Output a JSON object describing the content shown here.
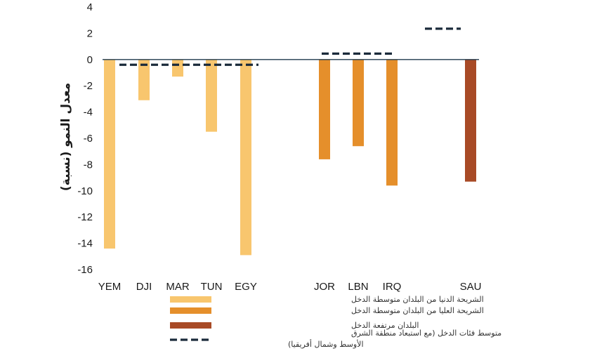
{
  "chart_data": {
    "type": "bar",
    "ylabel": "معدل النمو (نسبة)",
    "ylim": [
      -16,
      4
    ],
    "yticks": [
      4,
      2,
      0,
      -2,
      -4,
      -6,
      -8,
      -10,
      -12,
      -14,
      -16
    ],
    "categories": [
      "YEM",
      "DJI",
      "MAR",
      "TUN",
      "EGY",
      "JOR",
      "LBN",
      "IRQ",
      "SAU"
    ],
    "bars": [
      {
        "category": "YEM",
        "value": -14.4,
        "group": "lower_middle"
      },
      {
        "category": "DJI",
        "value": -3.1,
        "group": "lower_middle"
      },
      {
        "category": "MAR",
        "value": -1.3,
        "group": "lower_middle"
      },
      {
        "category": "TUN",
        "value": -5.5,
        "group": "lower_middle"
      },
      {
        "category": "EGY",
        "value": -14.9,
        "group": "lower_middle"
      },
      {
        "category": "JOR",
        "value": -7.6,
        "group": "upper_middle"
      },
      {
        "category": "LBN",
        "value": -6.6,
        "group": "upper_middle"
      },
      {
        "category": "IRQ",
        "value": -9.6,
        "group": "upper_middle"
      },
      {
        "category": "SAU",
        "value": -9.3,
        "group": "high"
      }
    ],
    "group_averages": [
      {
        "group": "lower_middle",
        "categories": [
          "YEM",
          "DJI",
          "MAR",
          "TUN",
          "EGY"
        ],
        "value": -0.4
      },
      {
        "group": "upper_middle",
        "categories": [
          "JOR",
          "LBN",
          "IRQ"
        ],
        "value": 0.45
      },
      {
        "group": "high",
        "categories": [
          "SAU"
        ],
        "value": 2.35
      }
    ],
    "series": [
      {
        "key": "lower_middle",
        "name": "الشريحة الدنيا من البلدان متوسطة الدخل",
        "color": "#F8C66E"
      },
      {
        "key": "upper_middle",
        "name": "الشريحة العليا من البلدان متوسطة الدخل",
        "color": "#E58F2B"
      },
      {
        "key": "high",
        "name": "البلدان مرتفعة الدخل",
        "color": "#A84A26"
      }
    ],
    "average_legend": {
      "line1": "متوسط فئات الدخل (مع استبعاد منطقة الشرق",
      "line2": "الأوسط وشمال أفريقيا)",
      "color": "#1a2a3a"
    },
    "zero_line_color": "#1f3a4d",
    "grid": false,
    "legend_position": "bottom"
  }
}
